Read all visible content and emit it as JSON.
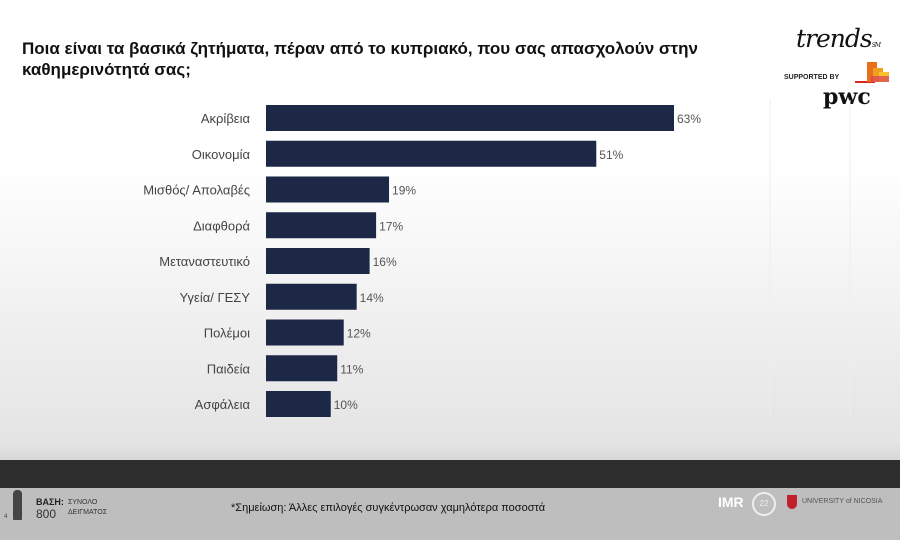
{
  "title": "Ποια είναι τα βασικά ζητήματα, πέραν από το κυπριακό, που σας απασχολούν στην καθημερινότητά σας;",
  "logos": {
    "trends": "trends",
    "supported_by": "SUPPORTED BY",
    "pwc": "pwc",
    "imr": "IMR",
    "anniversary": "22",
    "university": "UNIVERSITY of NICOSIA"
  },
  "colors": {
    "bar": "#1d2746"
  },
  "chart_data": {
    "type": "bar",
    "orientation": "horizontal",
    "categories": [
      "Ακρίβεια",
      "Οικονομία",
      "Μισθός/ Απολαβές",
      "Διαφθορά",
      "Μεταναστευτικό",
      "Υγεία/ ΓΕΣΥ",
      "Πολέμοι",
      "Παιδεία",
      "Ασφάλεια"
    ],
    "values": [
      63,
      51,
      19,
      17,
      16,
      14,
      12,
      11,
      10
    ],
    "value_suffix": "%",
    "xlim": [
      0,
      100
    ]
  },
  "footer": {
    "base_label": "ΒΑΣΗ:",
    "base_value": "800",
    "sample_line1": "ΣΥΝΟΛΟ",
    "sample_line2": "ΔΕΙΓΜΑΤΟΣ",
    "note": "*Σημείωση: Άλλες επιλογές συγκέντρωσαν χαμηλότερα ποσοστά",
    "page": "4"
  }
}
